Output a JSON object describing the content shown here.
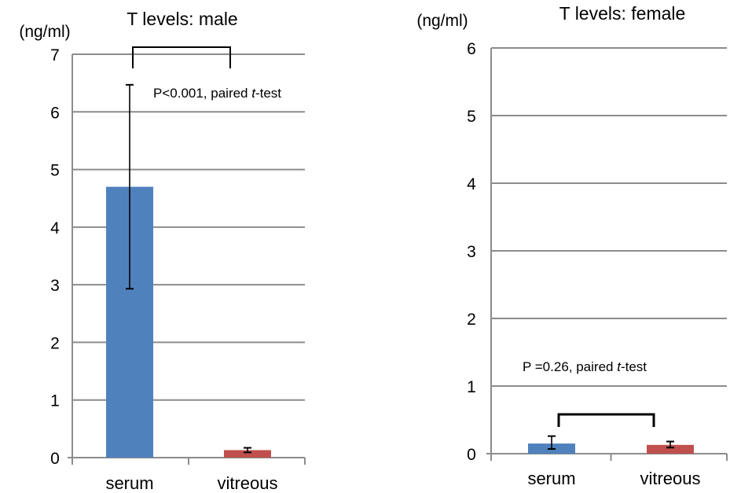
{
  "chart_data": [
    {
      "type": "bar",
      "title": "T levels: male",
      "ylabel": "(ng/ml)",
      "xlabel": "",
      "categories": [
        "serum",
        "vitreous"
      ],
      "values": [
        4.7,
        0.13
      ],
      "error_low": [
        2.93,
        0.09
      ],
      "error_high": [
        6.47,
        0.17
      ],
      "ylim": [
        0,
        7
      ],
      "yticks": [
        0,
        1,
        2,
        3,
        4,
        5,
        6,
        7
      ],
      "grid": true,
      "colors": [
        "#4F81BD",
        "#C0504D"
      ],
      "annotation": {
        "prefix": "P<0.001, paired ",
        "italic": "t",
        "suffix": "-test"
      }
    },
    {
      "type": "bar",
      "title": "T levels: female",
      "ylabel": "(ng/ml)",
      "xlabel": "",
      "categories": [
        "serum",
        "vitreous"
      ],
      "values": [
        0.15,
        0.13
      ],
      "error_low": [
        0.07,
        0.09
      ],
      "error_high": [
        0.26,
        0.18
      ],
      "ylim": [
        0,
        6
      ],
      "yticks": [
        0,
        1,
        2,
        3,
        4,
        5,
        6
      ],
      "grid": true,
      "colors": [
        "#4F81BD",
        "#C0504D"
      ],
      "annotation": {
        "prefix": "P =0.26, paired ",
        "italic": "t",
        "suffix": "-test"
      }
    }
  ]
}
